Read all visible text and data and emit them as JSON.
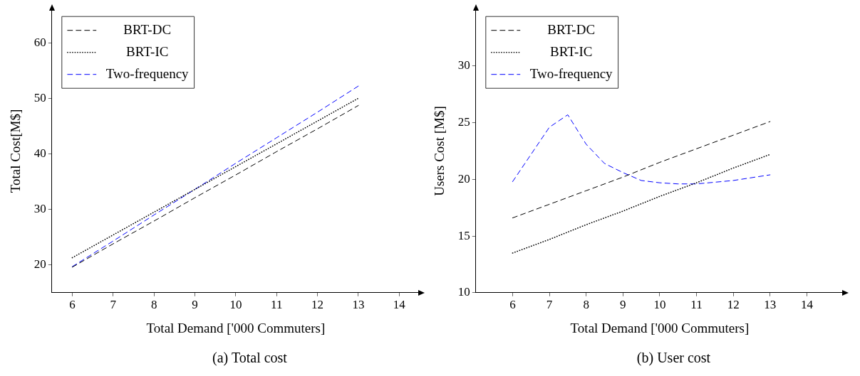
{
  "chart_data": [
    {
      "type": "line",
      "xlabel": "Total Demand ['000 Commuters]",
      "ylabel": "Total Cost[M$]",
      "annotations": [
        "(a) Total cost"
      ],
      "legend": "top left",
      "marker": "none",
      "x": [
        6,
        7,
        8,
        9,
        10,
        11,
        12,
        13
      ],
      "xlim": [
        5.5,
        14.5
      ],
      "xticks": [
        6,
        7,
        8,
        9,
        10,
        11,
        12,
        13,
        14
      ],
      "ylim": [
        15,
        66
      ],
      "yticks": [
        20,
        30,
        40,
        50,
        60
      ],
      "series": [
        {
          "name": "BRT-DC",
          "color": "#000000",
          "line_style": "dashed",
          "values": [
            19.6,
            23.8,
            27.9,
            32.1,
            36.2,
            40.4,
            44.5,
            48.7
          ]
        },
        {
          "name": "BRT-IC",
          "color": "#000000",
          "line_style": "dotted",
          "values": [
            21.3,
            25.4,
            29.5,
            33.6,
            37.7,
            41.8,
            45.9,
            50.0
          ]
        },
        {
          "name": "Two-frequency",
          "color": "#0000ff",
          "line_style": "dashed",
          "values": [
            19.7,
            24.3,
            29.0,
            33.6,
            38.3,
            42.9,
            47.5,
            52.2
          ]
        }
      ]
    },
    {
      "type": "line",
      "xlabel": "Total Demand ['000 Commuters]",
      "ylabel": "Users Cost [M$]",
      "annotations": [
        "(b) User cost"
      ],
      "legend": "top left",
      "marker": "none",
      "x": [
        6,
        7,
        8,
        9,
        10,
        11,
        12,
        13
      ],
      "xlim": [
        5,
        15
      ],
      "xticks": [
        6,
        7,
        8,
        9,
        10,
        11,
        12,
        13,
        14
      ],
      "ylim": [
        10,
        35
      ],
      "yticks": [
        10,
        15,
        20,
        25,
        30
      ],
      "series": [
        {
          "name": "BRT-DC",
          "color": "#000000",
          "line_style": "dashed",
          "values": [
            16.6,
            17.8,
            19.0,
            20.2,
            21.5,
            22.7,
            23.9,
            25.1
          ]
        },
        {
          "name": "BRT-IC",
          "color": "#000000",
          "line_style": "dotted",
          "values": [
            13.5,
            14.7,
            16.0,
            17.2,
            18.5,
            19.7,
            21.0,
            22.2
          ]
        },
        {
          "name": "Two-frequency",
          "color": "#0000ff",
          "line_style": "dashed",
          "x": [
            6,
            7,
            7.5,
            8,
            8.5,
            9,
            9.5,
            10,
            10.5,
            11,
            12,
            13
          ],
          "values": [
            19.8,
            24.6,
            25.7,
            23.1,
            21.4,
            20.6,
            19.9,
            19.7,
            19.6,
            19.6,
            19.9,
            20.4
          ]
        }
      ]
    }
  ]
}
